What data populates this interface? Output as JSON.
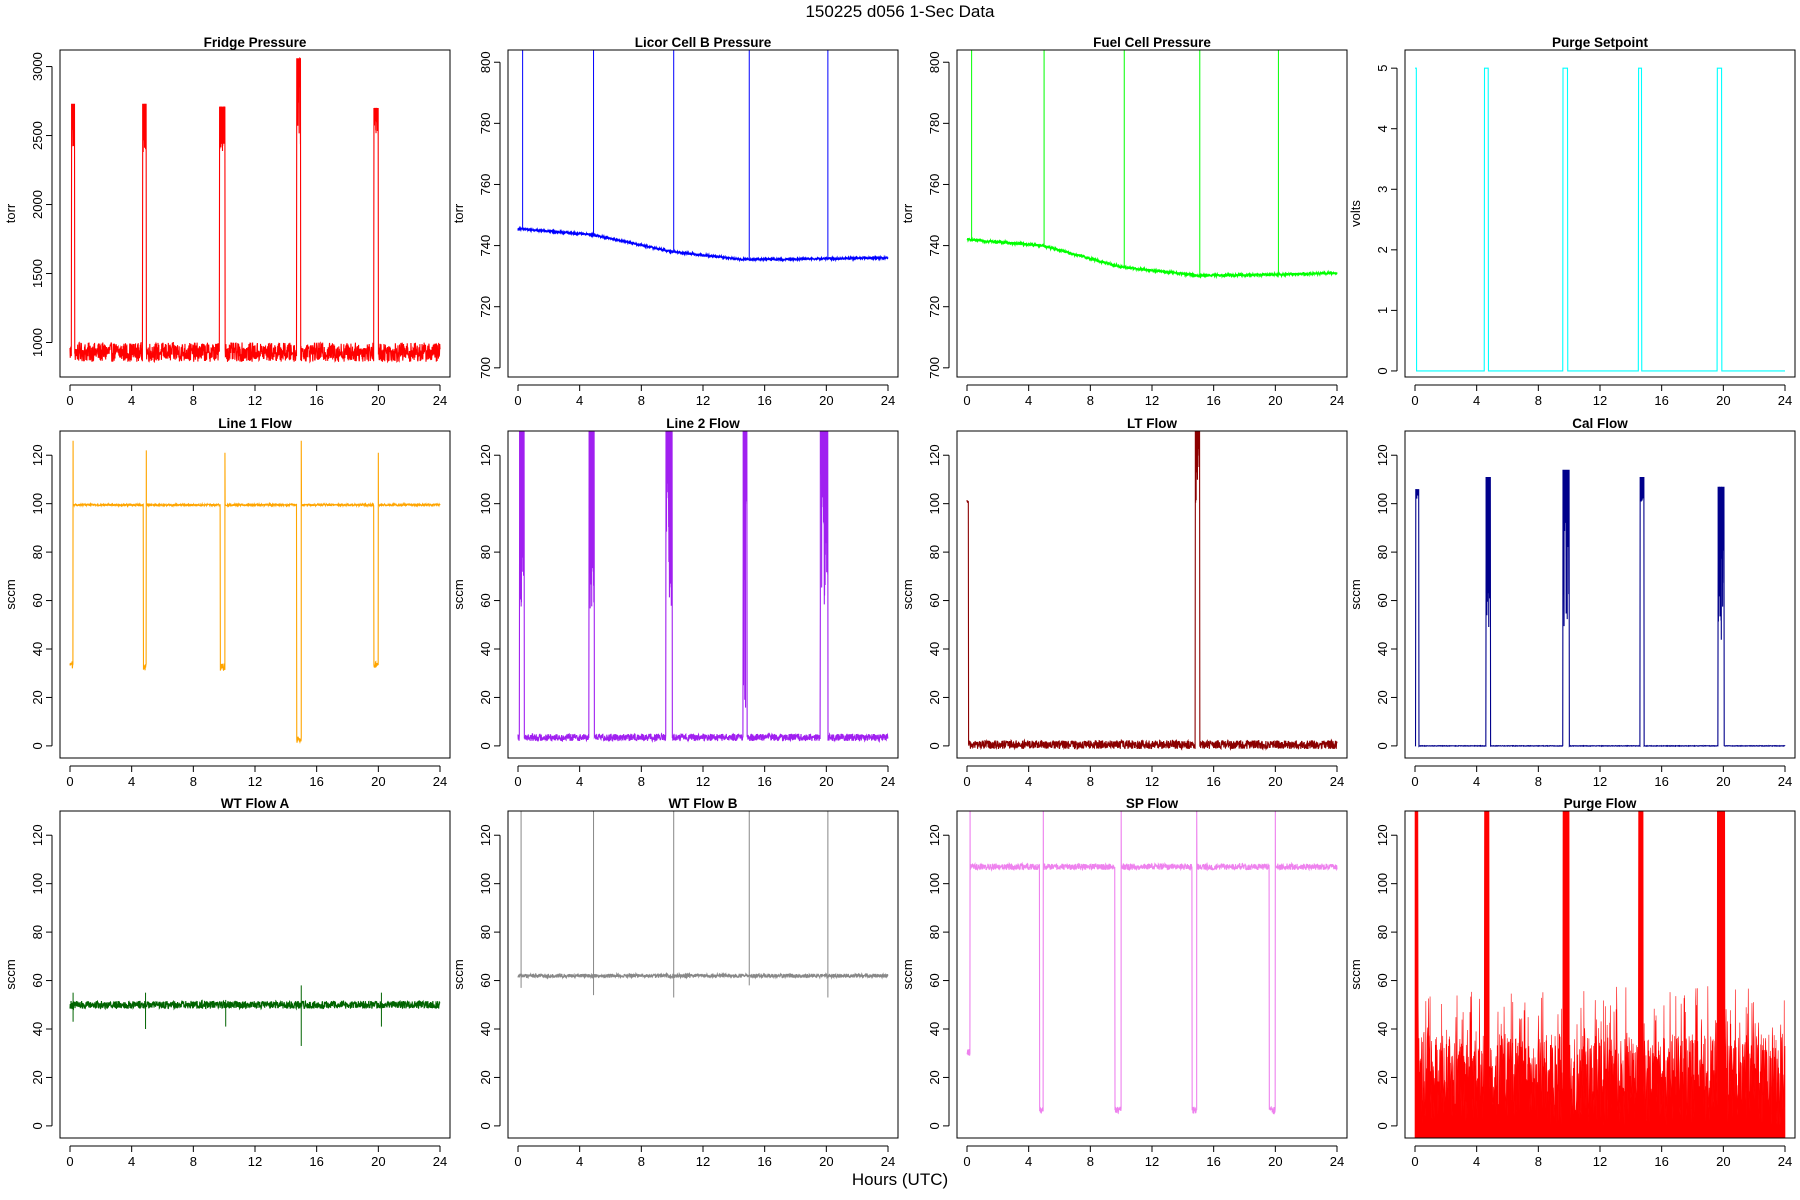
{
  "header": {
    "title": "150225    d056    1-Sec Data"
  },
  "x_axis_title": "Hours (UTC)",
  "chart_data": [
    {
      "type": "line",
      "title": "Fridge Pressure",
      "ylabel": "torr",
      "color": "#ff0000",
      "xlim": [
        0,
        24
      ],
      "ylim": [
        750,
        3120
      ],
      "x_ticks": [
        0,
        4,
        8,
        12,
        16,
        20,
        24
      ],
      "y_ticks": [
        1000,
        1500,
        2000,
        2500,
        3000
      ],
      "baseline": {
        "value": 930,
        "noise": 70
      },
      "spikes": [
        {
          "start": 0.1,
          "end": 0.3,
          "peak": 2730,
          "min": 2400
        },
        {
          "start": 4.7,
          "end": 4.95,
          "peak": 2730,
          "min": 2380
        },
        {
          "start": 9.7,
          "end": 10.05,
          "peak": 2710,
          "min": 2380
        },
        {
          "start": 14.7,
          "end": 14.95,
          "peak": 3060,
          "min": 2400
        },
        {
          "start": 19.7,
          "end": 20.0,
          "peak": 2700,
          "min": 2380
        }
      ]
    },
    {
      "type": "line",
      "title": "Licor Cell B Pressure",
      "ylabel": "torr",
      "color": "#0000ff",
      "xlim": [
        0,
        24
      ],
      "ylim": [
        697,
        804
      ],
      "x_ticks": [
        0,
        4,
        8,
        12,
        16,
        20,
        24
      ],
      "y_ticks": [
        700,
        720,
        740,
        760,
        780,
        800
      ],
      "trend": {
        "x": [
          0,
          4.9,
          10,
          14.5,
          17,
          24
        ],
        "y": [
          745.5,
          743.5,
          738,
          735.5,
          735.5,
          736
        ]
      },
      "noise": 0.3,
      "vlines": [
        0.3,
        4.9,
        10.1,
        15.0,
        20.1
      ],
      "vline_top": 804
    },
    {
      "type": "line",
      "title": "Fuel Cell Pressure",
      "ylabel": "torr",
      "color": "#00ff00",
      "xlim": [
        0,
        24
      ],
      "ylim": [
        697,
        804
      ],
      "x_ticks": [
        0,
        4,
        8,
        12,
        16,
        20,
        24
      ],
      "y_ticks": [
        700,
        720,
        740,
        760,
        780,
        800
      ],
      "trend": {
        "x": [
          0,
          4.9,
          10,
          15,
          20,
          24
        ],
        "y": [
          742,
          740,
          733,
          730.2,
          730.5,
          731
        ]
      },
      "noise": 0.4,
      "vlines": [
        0.3,
        5.0,
        10.2,
        15.1,
        20.2
      ],
      "vline_top": 804
    },
    {
      "type": "line",
      "title": "Purge Setpoint",
      "ylabel": "volts",
      "color": "#00ffff",
      "xlim": [
        0,
        24
      ],
      "ylim": [
        -0.1,
        5.3
      ],
      "x_ticks": [
        0,
        4,
        8,
        12,
        16,
        20,
        24
      ],
      "y_ticks": [
        0,
        1,
        2,
        3,
        4,
        5
      ],
      "baseline": {
        "value": 0,
        "noise": 0
      },
      "spikes": [
        {
          "start": 0.0,
          "end": 0.1,
          "peak": 5,
          "min": 5
        },
        {
          "start": 4.5,
          "end": 4.75,
          "peak": 5,
          "min": 5
        },
        {
          "start": 9.6,
          "end": 9.9,
          "peak": 5,
          "min": 5
        },
        {
          "start": 14.5,
          "end": 14.7,
          "peak": 5,
          "min": 5
        },
        {
          "start": 19.6,
          "end": 19.9,
          "peak": 5,
          "min": 5
        }
      ]
    },
    {
      "type": "line",
      "title": "Line 1 Flow",
      "ylabel": "sccm",
      "color": "#ffa500",
      "xlim": [
        0,
        24
      ],
      "ylim": [
        -5,
        130
      ],
      "x_ticks": [
        0,
        4,
        8,
        12,
        16,
        20,
        24
      ],
      "y_ticks": [
        0,
        20,
        40,
        60,
        80,
        100,
        120
      ],
      "baseline": {
        "value": 99.5,
        "noise": 0.4
      },
      "dips": [
        {
          "start": 0.0,
          "end": 0.2,
          "low": 32,
          "spike": 126
        },
        {
          "start": 4.75,
          "end": 4.95,
          "low": 31,
          "spike": 122
        },
        {
          "start": 9.75,
          "end": 10.05,
          "low": 31,
          "spike": 121
        },
        {
          "start": 14.7,
          "end": 15.0,
          "low": 1,
          "spike": 126
        },
        {
          "start": 19.7,
          "end": 20.0,
          "low": 32,
          "spike": 121
        }
      ]
    },
    {
      "type": "line",
      "title": "Line 2 Flow",
      "ylabel": "sccm",
      "color": "#a020f0",
      "xlim": [
        0,
        24
      ],
      "ylim": [
        -5,
        130
      ],
      "x_ticks": [
        0,
        4,
        8,
        12,
        16,
        20,
        24
      ],
      "y_ticks": [
        0,
        20,
        40,
        60,
        80,
        100,
        120
      ],
      "baseline": {
        "value": 3.5,
        "noise": 1.5
      },
      "spikes": [
        {
          "start": 0.1,
          "end": 0.4,
          "peak": 130,
          "min": 56
        },
        {
          "start": 4.6,
          "end": 4.95,
          "peak": 130,
          "min": 56
        },
        {
          "start": 9.6,
          "end": 10.0,
          "peak": 130,
          "min": 56
        },
        {
          "start": 14.6,
          "end": 14.85,
          "peak": 130,
          "min": 10
        },
        {
          "start": 19.6,
          "end": 20.1,
          "peak": 130,
          "min": 56
        }
      ]
    },
    {
      "type": "line",
      "title": "LT Flow",
      "ylabel": "sccm",
      "color": "#8b0000",
      "xlim": [
        0,
        24
      ],
      "ylim": [
        -5,
        130
      ],
      "x_ticks": [
        0,
        4,
        8,
        12,
        16,
        20,
        24
      ],
      "y_ticks": [
        0,
        20,
        40,
        60,
        80,
        100,
        120
      ],
      "baseline": {
        "value": 0.5,
        "noise": 1.8
      },
      "spikes": [
        {
          "start": 0.0,
          "end": 0.1,
          "peak": 101,
          "min": 100
        },
        {
          "start": 14.8,
          "end": 15.1,
          "peak": 130,
          "min": 98
        }
      ]
    },
    {
      "type": "line",
      "title": "Cal Flow",
      "ylabel": "sccm",
      "color": "#00008b",
      "xlim": [
        0,
        24
      ],
      "ylim": [
        -5,
        130
      ],
      "x_ticks": [
        0,
        4,
        8,
        12,
        16,
        20,
        24
      ],
      "y_ticks": [
        0,
        20,
        40,
        60,
        80,
        100,
        120
      ],
      "baseline": {
        "value": 0,
        "noise": 0.1
      },
      "spikes": [
        {
          "start": 0.05,
          "end": 0.25,
          "peak": 106,
          "min": 100
        },
        {
          "start": 4.6,
          "end": 4.9,
          "peak": 111,
          "min": 49
        },
        {
          "start": 9.6,
          "end": 10.0,
          "peak": 114,
          "min": 44
        },
        {
          "start": 14.6,
          "end": 14.85,
          "peak": 111,
          "min": 100
        },
        {
          "start": 19.65,
          "end": 20.05,
          "peak": 107,
          "min": 43
        }
      ]
    },
    {
      "type": "line",
      "title": "WT Flow A",
      "ylabel": "sccm",
      "color": "#006400",
      "xlim": [
        0,
        24
      ],
      "ylim": [
        -5,
        130
      ],
      "x_ticks": [
        0,
        4,
        8,
        12,
        16,
        20,
        24
      ],
      "y_ticks": [
        0,
        20,
        40,
        60,
        80,
        100,
        120
      ],
      "baseline": {
        "value": 50,
        "noise": 1.6
      },
      "glitches": [
        {
          "x": 0.2,
          "low": 43,
          "high": 55
        },
        {
          "x": 4.9,
          "low": 40,
          "high": 55
        },
        {
          "x": 10.1,
          "low": 41,
          "high": 52
        },
        {
          "x": 15.0,
          "low": 33,
          "high": 58
        },
        {
          "x": 20.2,
          "low": 41,
          "high": 55
        }
      ]
    },
    {
      "type": "line",
      "title": "WT Flow B",
      "ylabel": "sccm",
      "color": "#888888",
      "xlim": [
        0,
        24
      ],
      "ylim": [
        -5,
        130
      ],
      "x_ticks": [
        0,
        4,
        8,
        12,
        16,
        20,
        24
      ],
      "y_ticks": [
        0,
        20,
        40,
        60,
        80,
        100,
        120
      ],
      "baseline": {
        "value": 62,
        "noise": 0.8
      },
      "glitches": [
        {
          "x": 0.2,
          "low": 57,
          "high": 130
        },
        {
          "x": 4.9,
          "low": 54,
          "high": 130
        },
        {
          "x": 10.1,
          "low": 53,
          "high": 130
        },
        {
          "x": 15.0,
          "low": 58,
          "high": 130
        },
        {
          "x": 20.1,
          "low": 53,
          "high": 130
        }
      ]
    },
    {
      "type": "line",
      "title": "SP Flow",
      "ylabel": "sccm",
      "color": "#ee82ee",
      "xlim": [
        0,
        24
      ],
      "ylim": [
        -5,
        130
      ],
      "x_ticks": [
        0,
        4,
        8,
        12,
        16,
        20,
        24
      ],
      "y_ticks": [
        0,
        20,
        40,
        60,
        80,
        100,
        120
      ],
      "baseline": {
        "value": 107,
        "noise": 1.3
      },
      "dips": [
        {
          "start": 0.0,
          "end": 0.2,
          "low": 29,
          "spike": 130
        },
        {
          "start": 4.7,
          "end": 4.95,
          "low": 5,
          "spike": 130
        },
        {
          "start": 9.6,
          "end": 10.0,
          "low": 5,
          "spike": 130
        },
        {
          "start": 14.6,
          "end": 14.9,
          "low": 5,
          "spike": 130
        },
        {
          "start": 19.6,
          "end": 20.0,
          "low": 5,
          "spike": 130
        }
      ]
    },
    {
      "type": "area",
      "title": "Purge Flow",
      "ylabel": "sccm",
      "color": "#ff0000",
      "xlim": [
        0,
        24
      ],
      "ylim": [
        -5,
        130
      ],
      "x_ticks": [
        0,
        4,
        8,
        12,
        16,
        20,
        24
      ],
      "y_ticks": [
        0,
        20,
        40,
        60,
        80,
        100,
        120
      ],
      "floor": -5,
      "typical_max": 38,
      "noise_peak_max": 58,
      "bursts": [
        {
          "start": 0.0,
          "end": 0.2,
          "peak": 130
        },
        {
          "start": 4.5,
          "end": 4.8,
          "peak": 130
        },
        {
          "start": 9.6,
          "end": 10.0,
          "peak": 130
        },
        {
          "start": 14.5,
          "end": 14.8,
          "peak": 130
        },
        {
          "start": 19.6,
          "end": 20.1,
          "peak": 130
        }
      ]
    }
  ]
}
